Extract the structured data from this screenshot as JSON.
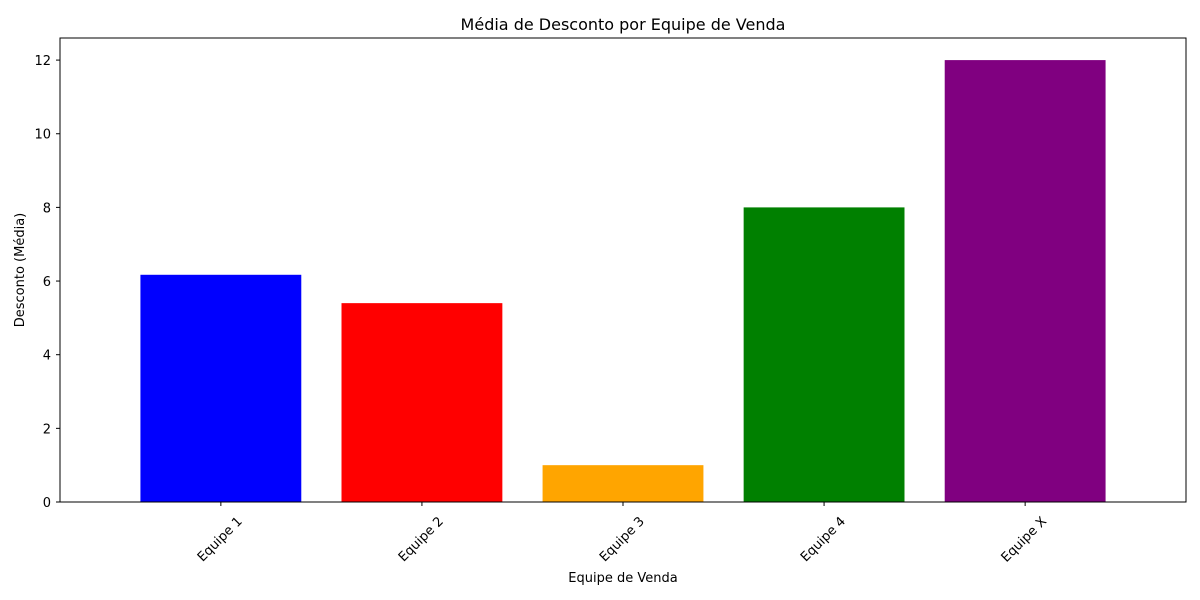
{
  "chart_data": {
    "type": "bar",
    "title": "Média de Desconto por Equipe de Venda",
    "xlabel": "Equipe de Venda",
    "ylabel": "Desconto (Média)",
    "categories": [
      "Equipe 1",
      "Equipe 2",
      "Equipe 3",
      "Equipe 4",
      "Equipe X"
    ],
    "values": [
      6.17,
      5.4,
      1.0,
      8.0,
      12.0
    ],
    "colors": [
      "#0000ff",
      "#ff0000",
      "#ffa500",
      "#008000",
      "#800080"
    ],
    "ylim": [
      0,
      12.6
    ],
    "yticks": [
      0,
      2,
      4,
      6,
      8,
      10,
      12
    ],
    "grid": false,
    "legend": "none"
  }
}
